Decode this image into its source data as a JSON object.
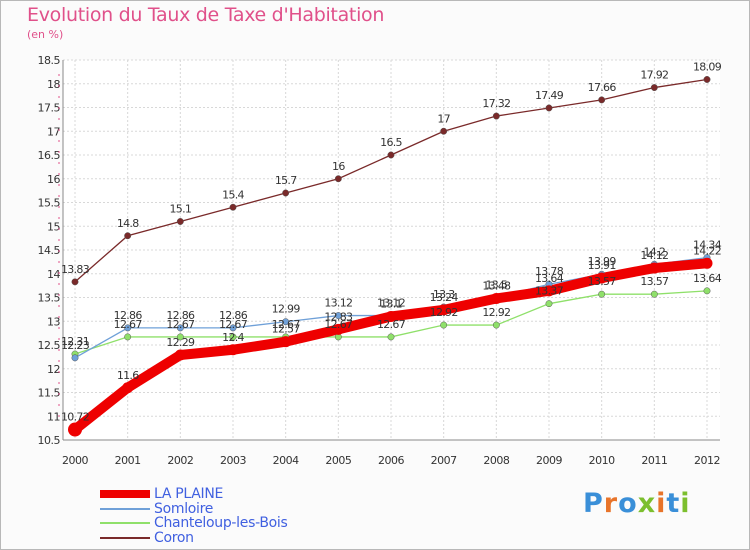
{
  "header": {
    "title": "Evolution du Taux de Taxe d'Habitation",
    "subtitle": "(en %)"
  },
  "logo": {
    "text": "Proxiti",
    "colors": [
      "#3a8fd8",
      "#e8742a",
      "#3a8fd8",
      "#7cbf2e",
      "#e8742a",
      "#3a8fd8",
      "#7cbf2e"
    ]
  },
  "chart_data": {
    "type": "line",
    "x": [
      2000,
      2001,
      2002,
      2003,
      2004,
      2005,
      2006,
      2007,
      2008,
      2009,
      2010,
      2011,
      2012
    ],
    "ylim": [
      10.5,
      18.5
    ],
    "yticks": [
      "10.5",
      "11",
      "11.5",
      "12",
      "12.5",
      "13",
      "13.5",
      "14",
      "14.5",
      "15",
      "15.5",
      "16",
      "16.5",
      "17",
      "17.5",
      "18",
      "18.5"
    ],
    "legend_position": "bottom-left",
    "series": [
      {
        "name": "LA PLAINE",
        "color": "#ee0000",
        "width": 10,
        "values": [
          10.72,
          11.6,
          12.29,
          12.4,
          12.57,
          12.83,
          13.1,
          13.24,
          13.48,
          13.64,
          13.91,
          14.12,
          14.22
        ],
        "labels": [
          "10.72",
          "11.6",
          "12.29",
          "12.4",
          "12.57",
          "12.83",
          "13.1",
          "13.24",
          "13.48",
          "13.64",
          "13.91",
          "14.12",
          "14.22"
        ]
      },
      {
        "name": "Somloire",
        "color": "#6fa0d8",
        "width": 1,
        "values": [
          12.23,
          12.86,
          12.86,
          12.86,
          12.99,
          13.12,
          13.12,
          13.3,
          13.5,
          13.78,
          13.99,
          14.2,
          14.34
        ],
        "labels": [
          "12.23",
          "12.86",
          "12.86",
          "12.86",
          "12.99",
          "13.12",
          "13.12",
          "13.3",
          "13.5",
          "13.78",
          "13.99",
          "14.2",
          "14.34"
        ]
      },
      {
        "name": "Chanteloup-les-Bois",
        "color": "#8fe06a",
        "width": 1,
        "values": [
          12.31,
          12.67,
          12.67,
          12.67,
          12.67,
          12.67,
          12.67,
          12.92,
          12.92,
          13.37,
          13.57,
          13.57,
          13.64
        ],
        "labels": [
          "12.31",
          "12.67",
          "12.67",
          "12.67",
          "12.67",
          "12.67",
          "12.67",
          "12.92",
          "12.92",
          "13.37",
          "13.57",
          "13.57",
          "13.64"
        ]
      },
      {
        "name": "Coron",
        "color": "#7a2a2a",
        "width": 1,
        "values": [
          13.83,
          14.8,
          15.1,
          15.4,
          15.7,
          16,
          16.5,
          17,
          17.32,
          17.49,
          17.66,
          17.92,
          18.09
        ],
        "labels": [
          "13.83",
          "14.8",
          "15.1",
          "15.4",
          "15.7",
          "16",
          "16.5",
          "17",
          "17.32",
          "17.49",
          "17.66",
          "17.92",
          "18.09"
        ]
      }
    ]
  }
}
